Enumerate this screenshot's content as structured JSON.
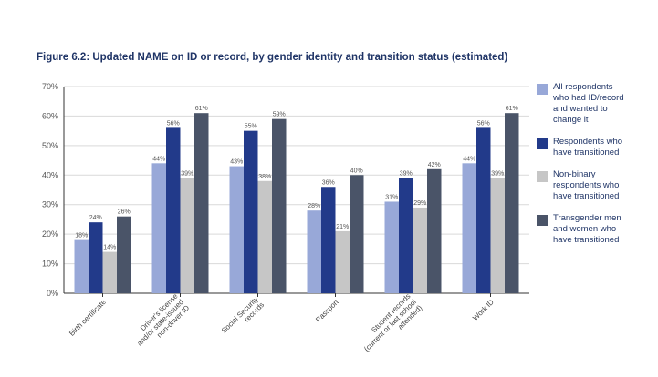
{
  "figure_title": "Figure 6.2: Updated NAME on ID or record, by gender identity and transition status (estimated)",
  "chart_data": {
    "type": "bar",
    "categories": [
      "Birth certificate",
      "Driver's license and/or state-issued non-driver ID",
      "Social Security records",
      "Passport",
      "Student records (current or last school attended)",
      "Work ID"
    ],
    "category_lines": [
      [
        "Birth certificate"
      ],
      [
        "Driver's license",
        "and/or state-issued",
        "non-driver ID"
      ],
      [
        "Social Security",
        "records"
      ],
      [
        "Passport"
      ],
      [
        "Student records",
        "(current or last school",
        "attended)"
      ],
      [
        "Work ID"
      ]
    ],
    "series": [
      {
        "name": "All respondents who had ID/record and wanted to change it",
        "color": "#98a8d8",
        "values": [
          18,
          44,
          43,
          28,
          31,
          44
        ]
      },
      {
        "name": "Respondents who have transitioned",
        "color": "#223a8a",
        "values": [
          24,
          56,
          55,
          36,
          39,
          56
        ]
      },
      {
        "name": "Non-binary respondents who have transitioned",
        "color": "#c6c6c6",
        "values": [
          14,
          39,
          38,
          21,
          29,
          39
        ]
      },
      {
        "name": "Transgender men and women who have transitioned",
        "color": "#4a5468",
        "values": [
          26,
          61,
          59,
          40,
          42,
          61
        ]
      }
    ],
    "legend_lines": [
      [
        "All respondents",
        "who had ID/record",
        "and wanted to",
        "change it"
      ],
      [
        "Respondents who",
        "have transitioned"
      ],
      [
        "Non-binary",
        "respondents who",
        "have transitioned"
      ],
      [
        "Transgender men",
        "and women who",
        "have transitioned"
      ]
    ],
    "yticks": [
      "0%",
      "10%",
      "20%",
      "30%",
      "40%",
      "50%",
      "60%",
      "70%"
    ],
    "ylim": [
      0,
      70
    ],
    "value_suffix": "%",
    "grid": true,
    "legend_position": "right"
  }
}
